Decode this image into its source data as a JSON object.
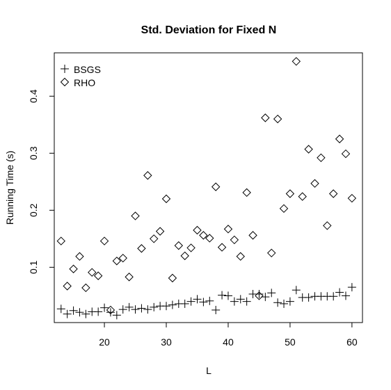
{
  "chart_data": {
    "type": "scatter",
    "title": "Std. Deviation for Fixed N",
    "xlabel": "L",
    "ylabel": "Running Time (s)",
    "xlim": [
      11.9,
      61.7
    ],
    "ylim": [
      0.003,
      0.476
    ],
    "xticks": [
      20,
      30,
      40,
      50,
      60
    ],
    "yticks": [
      0.1,
      0.2,
      0.3,
      0.4
    ],
    "xtick_labels": [
      "20",
      "30",
      "40",
      "50",
      "60"
    ],
    "ytick_labels": [
      "0.1",
      "0.2",
      "0.3",
      "0.4"
    ],
    "legend_position": "top-left",
    "series": [
      {
        "name": "BSGS",
        "marker": "plus",
        "x": [
          13,
          14,
          15,
          16,
          17,
          18,
          19,
          20,
          21,
          22,
          23,
          24,
          25,
          26,
          27,
          28,
          29,
          30,
          31,
          32,
          33,
          34,
          35,
          36,
          37,
          38,
          39,
          40,
          41,
          42,
          43,
          44,
          45,
          46,
          47,
          48,
          49,
          50,
          51,
          52,
          53,
          54,
          55,
          56,
          57,
          58,
          59,
          60
        ],
        "y": [
          0.027,
          0.018,
          0.024,
          0.021,
          0.018,
          0.022,
          0.022,
          0.029,
          0.021,
          0.016,
          0.026,
          0.03,
          0.026,
          0.028,
          0.026,
          0.03,
          0.032,
          0.032,
          0.034,
          0.036,
          0.036,
          0.04,
          0.044,
          0.039,
          0.041,
          0.025,
          0.051,
          0.05,
          0.04,
          0.044,
          0.04,
          0.053,
          0.053,
          0.048,
          0.055,
          0.038,
          0.036,
          0.04,
          0.06,
          0.047,
          0.047,
          0.049,
          0.049,
          0.049,
          0.049,
          0.056,
          0.05,
          0.065
        ]
      },
      {
        "name": "RHO",
        "marker": "diamond",
        "x": [
          13,
          14,
          15,
          16,
          17,
          18,
          19,
          20,
          21,
          22,
          23,
          24,
          25,
          26,
          27,
          28,
          29,
          30,
          31,
          32,
          33,
          34,
          35,
          36,
          37,
          38,
          39,
          40,
          41,
          42,
          43,
          44,
          45,
          46,
          47,
          48,
          49,
          50,
          51,
          52,
          53,
          54,
          55,
          56,
          57,
          58,
          59,
          60
        ],
        "y": [
          0.146,
          0.067,
          0.097,
          0.119,
          0.064,
          0.091,
          0.085,
          0.146,
          0.025,
          0.111,
          0.116,
          0.083,
          0.19,
          0.133,
          0.261,
          0.15,
          0.163,
          0.22,
          0.081,
          0.138,
          0.12,
          0.134,
          0.165,
          0.156,
          0.151,
          0.241,
          0.135,
          0.167,
          0.148,
          0.119,
          0.231,
          0.156,
          0.05,
          0.362,
          0.125,
          0.36,
          0.203,
          0.229,
          0.461,
          0.224,
          0.307,
          0.247,
          0.292,
          0.173,
          0.229,
          0.325,
          0.299,
          0.221
        ]
      }
    ]
  }
}
